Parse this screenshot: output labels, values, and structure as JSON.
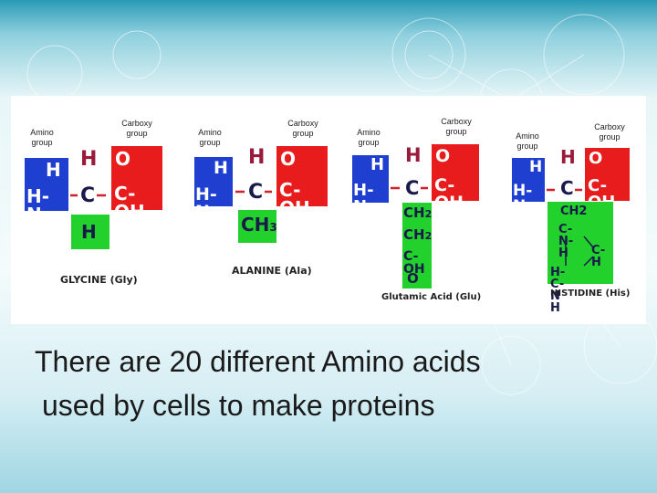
{
  "groups": {
    "amino": "Amino group",
    "carboxy": "Carboxy group"
  },
  "molecules": [
    {
      "name": "GLYCINE (Gly)"
    },
    {
      "name": "ALANINE (Ala)"
    },
    {
      "name": "Glutamic Acid (Glu)"
    },
    {
      "name": "HISTIDINE (His)"
    }
  ],
  "atoms": {
    "H": "H",
    "HN": "H-N",
    "C": "C",
    "O": "O",
    "COH": "C-OH",
    "CH3": "CH",
    "sub3": "3",
    "CH2": "CH",
    "sub2": "2",
    "COH_side": "C-OH",
    "his": [
      "CH2",
      "C-N-H",
      "C-H",
      "H-C-N H"
    ]
  },
  "caption": {
    "line1": "There are 20 different Amino acids",
    "line2": "used by cells to make proteins"
  },
  "colors": {
    "amino": "#1f3fd0",
    "carboxy": "#e81c1c",
    "side_chain": "#23d12c"
  }
}
